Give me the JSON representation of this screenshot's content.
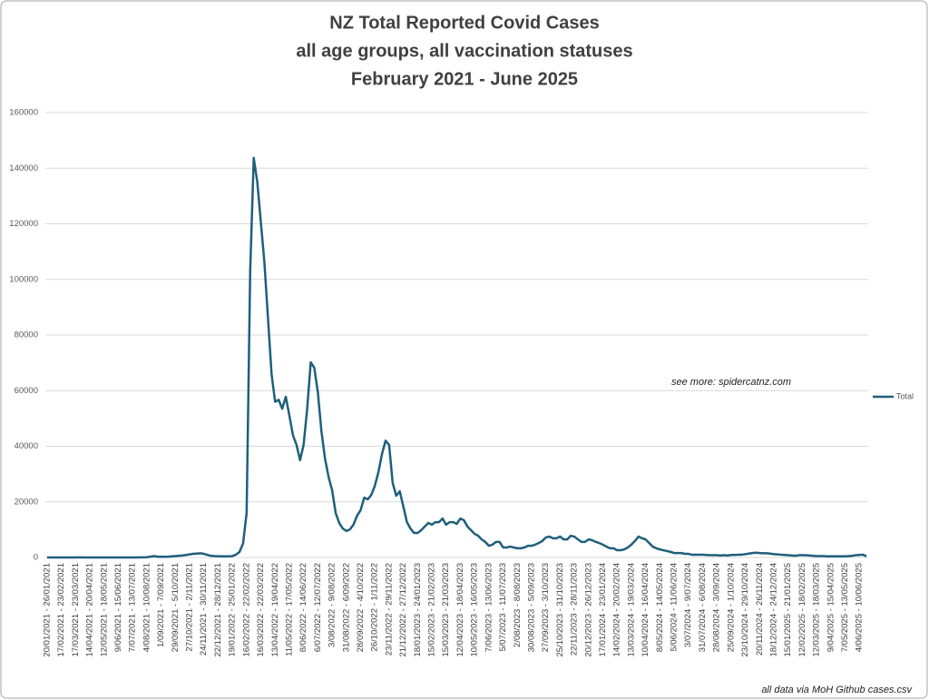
{
  "chart_data": {
    "type": "line",
    "title": [
      "NZ Total Reported Covid Cases",
      "all age groups, all vaccination statuses",
      "February 2021 - June 2025"
    ],
    "annotations": [
      "see more: spidercatnz.com",
      "all data via MoH Github cases.csv"
    ],
    "ylim": [
      0,
      160000
    ],
    "yticks": [
      0,
      20000,
      40000,
      60000,
      80000,
      100000,
      120000,
      140000,
      160000
    ],
    "grid": true,
    "legend": "right",
    "categories": [
      "20/01/2021 - 26/01/2021",
      null,
      null,
      null,
      "17/02/2021 - 23/02/2021",
      null,
      null,
      null,
      "17/03/2021 - 23/03/2021",
      null,
      null,
      null,
      "14/04/2021 - 20/04/2021",
      null,
      null,
      null,
      "12/05/2021 - 18/05/2021",
      null,
      null,
      null,
      "9/06/2021 - 15/06/2021",
      null,
      null,
      null,
      "7/07/2021 - 13/07/2021",
      null,
      null,
      null,
      "4/08/2021 - 10/08/2021",
      null,
      null,
      null,
      "1/09/2021 - 7/09/2021",
      null,
      null,
      null,
      "29/09/2021 - 5/10/2021",
      null,
      null,
      null,
      "27/10/2021 - 2/11/2021",
      null,
      null,
      null,
      "24/11/2021 - 30/11/2021",
      null,
      null,
      null,
      "22/12/2021 - 28/12/2021",
      null,
      null,
      null,
      "19/01/2022 - 25/01/2022",
      null,
      null,
      null,
      "16/02/2022 - 22/02/2022",
      null,
      null,
      null,
      "16/03/2022 - 22/03/2022",
      null,
      null,
      null,
      "13/04/2022 - 19/04/2022",
      null,
      null,
      null,
      "11/05/2022 - 17/05/2022",
      null,
      null,
      null,
      "8/06/2022 - 14/06/2022",
      null,
      null,
      null,
      "6/07/2022 - 12/07/2022",
      null,
      null,
      null,
      "3/08/2022 - 9/08/2022",
      null,
      null,
      null,
      "31/08/2022 - 6/09/2022",
      null,
      null,
      null,
      "28/09/2022 - 4/10/2022",
      null,
      null,
      null,
      "26/10/2022 - 1/11/2022",
      null,
      null,
      null,
      "23/11/2022 - 29/11/2022",
      null,
      null,
      null,
      "21/12/2022 - 27/12/2022",
      null,
      null,
      null,
      "18/01/2023 - 24/01/2023",
      null,
      null,
      null,
      "15/02/2023 - 21/02/2023",
      null,
      null,
      null,
      "15/03/2023 - 21/03/2023",
      null,
      null,
      null,
      "12/04/2023 - 18/04/2023",
      null,
      null,
      null,
      "10/05/2023 - 16/05/2023",
      null,
      null,
      null,
      "7/06/2023 - 13/06/2023",
      null,
      null,
      null,
      "5/07/2023 - 11/07/2023",
      null,
      null,
      null,
      "2/08/2023 - 8/08/2023",
      null,
      null,
      null,
      "30/08/2023 - 5/09/2023",
      null,
      null,
      null,
      "27/09/2023 - 3/10/2023",
      null,
      null,
      null,
      "25/10/2023 - 31/10/2023",
      null,
      null,
      null,
      "22/11/2023 - 28/11/2023",
      null,
      null,
      null,
      "20/12/2023 - 26/12/2023",
      null,
      null,
      null,
      "17/01/2024 - 23/01/2024",
      null,
      null,
      null,
      "14/02/2024 - 20/02/2024",
      null,
      null,
      null,
      "13/03/2024 - 19/03/2024",
      null,
      null,
      null,
      "10/04/2024 - 16/04/2024",
      null,
      null,
      null,
      "8/05/2024 - 14/05/2024",
      null,
      null,
      null,
      "5/06/2024 - 11/06/2024",
      null,
      null,
      null,
      "3/07/2024 - 9/07/2024",
      null,
      null,
      null,
      "31/07/2024 - 6/08/2024",
      null,
      null,
      null,
      "28/08/2024 - 3/09/2024",
      null,
      null,
      null,
      "25/09/2024 - 1/10/2024",
      null,
      null,
      null,
      "23/10/2024 - 29/10/2024",
      null,
      null,
      null,
      "20/11/2024 - 26/11/2024",
      null,
      null,
      null,
      "18/12/2024 - 24/12/2024",
      null,
      null,
      null,
      "15/01/2025 - 21/01/2025",
      null,
      null,
      null,
      "12/02/2025 - 18/02/2025",
      null,
      null,
      null,
      "12/03/2025 - 18/03/2025",
      null,
      null,
      null,
      "9/04/2025 - 15/04/2025",
      null,
      null,
      null,
      "7/05/2025 - 13/05/2025",
      null,
      null,
      null,
      "4/06/2025 - 10/06/2025",
      null,
      null
    ],
    "series": [
      {
        "name": "Total",
        "color": "#1f5f7b",
        "values": [
          10,
          20,
          10,
          10,
          20,
          10,
          10,
          10,
          20,
          30,
          20,
          10,
          10,
          20,
          10,
          20,
          10,
          10,
          20,
          10,
          10,
          20,
          10,
          10,
          10,
          20,
          30,
          50,
          100,
          300,
          500,
          300,
          250,
          250,
          300,
          400,
          500,
          600,
          700,
          900,
          1100,
          1300,
          1400,
          1500,
          1300,
          900,
          600,
          500,
          450,
          400,
          400,
          400,
          500,
          1000,
          2000,
          5000,
          16000,
          103000,
          143700,
          135000,
          120500,
          106000,
          86000,
          66000,
          56000,
          56700,
          53500,
          57800,
          51000,
          44000,
          40500,
          35000,
          40500,
          53500,
          70200,
          68200,
          59400,
          45400,
          35600,
          29000,
          24200,
          16000,
          12400,
          10400,
          9500,
          10100,
          11800,
          15000,
          17000,
          21500,
          20900,
          22500,
          25800,
          30700,
          37200,
          42000,
          40500,
          26800,
          22200,
          23800,
          18300,
          12700,
          10400,
          8800,
          8800,
          9800,
          11100,
          12400,
          11800,
          12700,
          12700,
          14000,
          11800,
          12700,
          12700,
          12100,
          14000,
          13400,
          11100,
          9800,
          8500,
          7800,
          6500,
          5600,
          4200,
          4600,
          5600,
          5600,
          3600,
          3600,
          3900,
          3600,
          3300,
          3300,
          3600,
          4200,
          4200,
          4600,
          5200,
          5900,
          7200,
          7500,
          6900,
          6900,
          7500,
          6500,
          6500,
          7800,
          7500,
          6500,
          5600,
          5600,
          6500,
          6200,
          5600,
          5200,
          4600,
          3900,
          3300,
          3300,
          2600,
          2600,
          2900,
          3600,
          4600,
          5900,
          7500,
          6900,
          6500,
          5200,
          3900,
          3300,
          2900,
          2600,
          2300,
          2000,
          1600,
          1600,
          1600,
          1300,
          1300,
          1000,
          1000,
          1000,
          1000,
          900,
          800,
          800,
          800,
          700,
          800,
          700,
          900,
          900,
          1000,
          1000,
          1200,
          1400,
          1600,
          1700,
          1600,
          1500,
          1500,
          1400,
          1200,
          1100,
          1000,
          900,
          800,
          700,
          600,
          800,
          800,
          800,
          700,
          600,
          500,
          500,
          500,
          400,
          400,
          400,
          400,
          400,
          400,
          500,
          600,
          800,
          900,
          1000,
          400
        ]
      }
    ]
  }
}
